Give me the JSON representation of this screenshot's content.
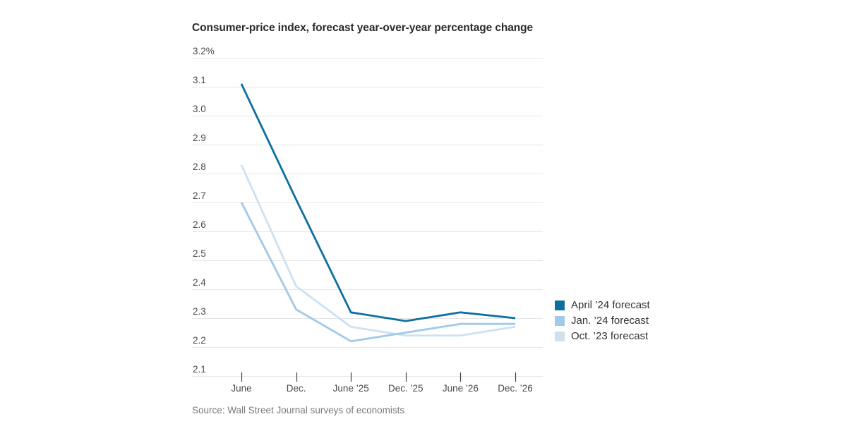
{
  "source": {
    "text": "Source: Wall Street Journal surveys of economists"
  },
  "chart_data": {
    "type": "line",
    "title": "Consumer-price index, forecast year-over-year percentage change",
    "categories": [
      "June",
      "Dec.",
      "June ’25",
      "Dec. ’25",
      "June ’26",
      "Dec. ’26"
    ],
    "series": [
      {
        "name": "April ’24 forecast",
        "color": "#0d6fa1",
        "values": [
          3.11,
          2.71,
          2.32,
          2.29,
          2.32,
          2.3
        ]
      },
      {
        "name": "Jan. ’24 forecast",
        "color": "#a1c9e8",
        "values": [
          2.7,
          2.33,
          2.22,
          2.25,
          2.28,
          2.28
        ]
      },
      {
        "name": "Oct. ’23 forecast",
        "color": "#cde1f1",
        "values": [
          2.83,
          2.41,
          2.27,
          2.24,
          2.24,
          2.27
        ]
      }
    ],
    "xlabel": "",
    "ylabel": "",
    "ylim": [
      2.1,
      3.2
    ],
    "ytick_step": 0.1,
    "ytick_labels": [
      "3.2%",
      "3.1",
      "3.0",
      "2.9",
      "2.8",
      "2.7",
      "2.6",
      "2.5",
      "2.4",
      "2.3",
      "2.2",
      "2.1"
    ],
    "grid": true,
    "legend_position": "right",
    "grid_color": "#e6e6e6",
    "tick_color": "#3f3f3f",
    "axis_label_color": "#4a4a4a"
  }
}
